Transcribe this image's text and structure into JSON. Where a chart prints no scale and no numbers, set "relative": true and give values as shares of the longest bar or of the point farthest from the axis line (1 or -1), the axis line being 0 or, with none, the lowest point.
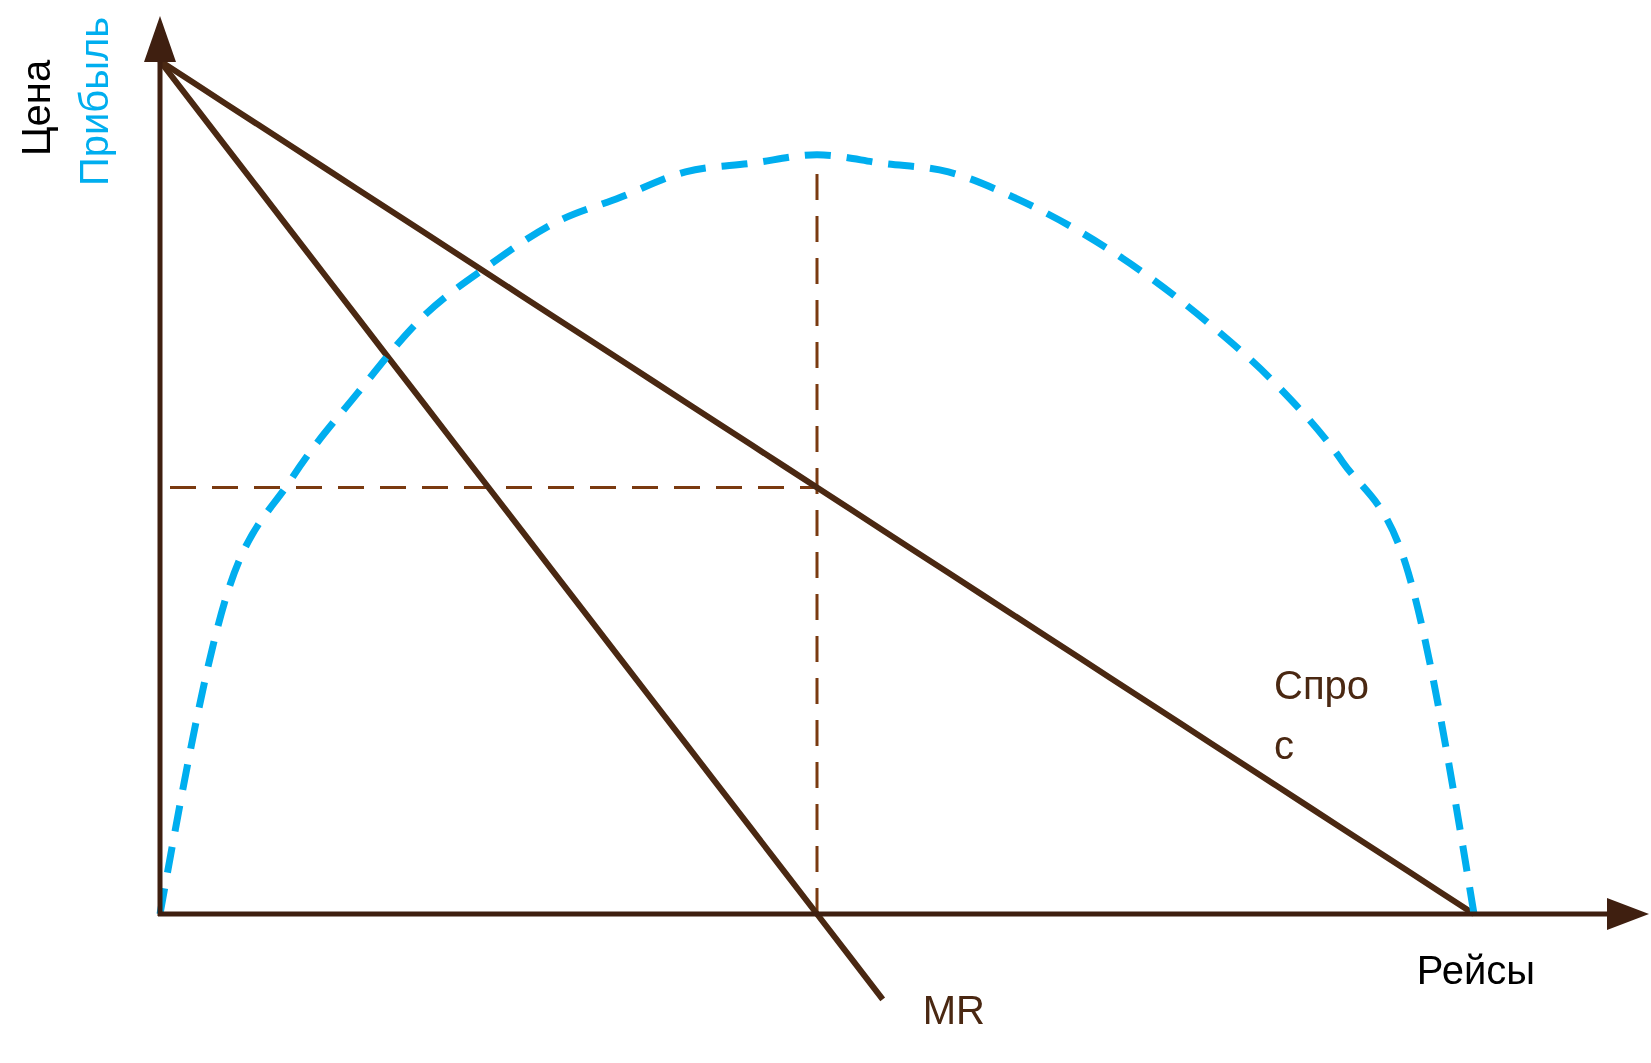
{
  "chart_data": {
    "type": "line",
    "relative": true,
    "xlabel": "Рейсы",
    "ylabel": "Цена",
    "marker": "none",
    "categories": [
      null,
      null,
      null,
      null,
      null,
      null,
      null,
      null,
      null,
      null,
      null,
      null,
      null,
      null,
      null,
      null,
      null,
      null,
      null,
      null,
      null
    ],
    "series": [
      {
        "name": "Спрос",
        "color": "#4a2812",
        "line_style": "solid",
        "values": [
          1,
          0.95,
          0.9,
          0.85,
          0.8,
          0.75,
          0.7,
          0.65,
          0.6,
          0.55,
          0.5,
          0.45,
          0.4,
          0.35,
          0.3,
          0.25,
          0.2,
          0.15,
          0.1,
          0.05,
          0
        ]
      },
      {
        "name": "MR",
        "color": "#4a2812",
        "line_style": "solid",
        "values": [
          1,
          0.9,
          0.8,
          0.7,
          0.6,
          0.5,
          0.4,
          0.3,
          0.2,
          0.1,
          0,
          -0.1,
          null,
          null,
          null,
          null,
          null,
          null,
          null,
          null,
          null
        ]
      },
      {
        "name": "Прибыль",
        "color": "#00aeef",
        "line_style": "dashed",
        "values": [
          0,
          0.37,
          0.51,
          0.61,
          0.7,
          0.76,
          0.81,
          0.84,
          0.87,
          0.88,
          0.89,
          0.88,
          0.87,
          0.84,
          0.8,
          0.75,
          0.69,
          0.62,
          0.53,
          0.4,
          0
        ]
      }
    ],
    "ref_lines": [
      {
        "axis": "y",
        "value": 0.5,
        "color": "#7a3a10",
        "line_style": "dashed"
      }
    ]
  }
}
